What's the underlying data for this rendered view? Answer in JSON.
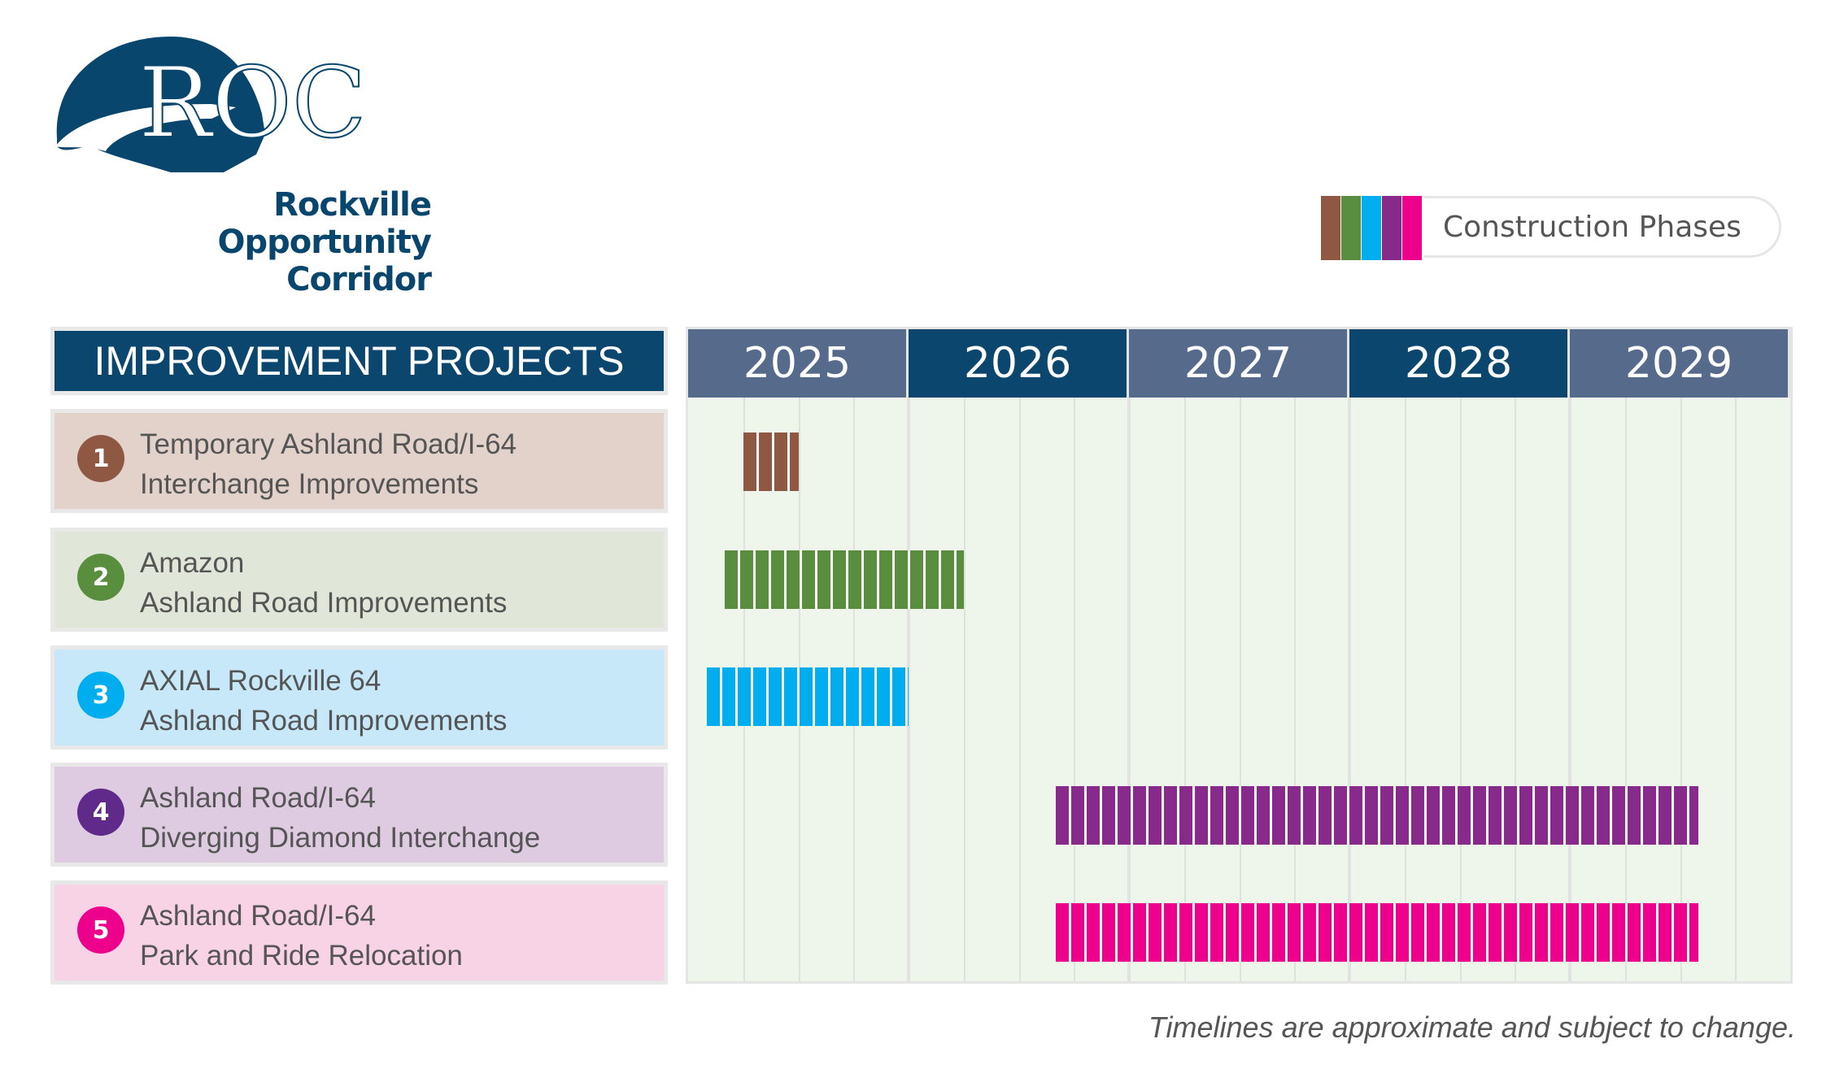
{
  "logo": {
    "mark": "ROC",
    "line1": "Rockville",
    "line2": "Opportunity",
    "line3": "Corridor",
    "color": "#08466e"
  },
  "legend": {
    "label": "Construction Phases",
    "colors": [
      "#8e5843",
      "#5a8e3f",
      "#00aeef",
      "#882a8c",
      "#ec008c"
    ]
  },
  "footnote": "Timelines are approximate and subject to change.",
  "chart_data": {
    "type": "gantt",
    "title": "IMPROVEMENT PROJECTS",
    "years": [
      "2025",
      "2026",
      "2027",
      "2028",
      "2029"
    ],
    "xlim": [
      "2025-01",
      "2029-12"
    ],
    "grid": "quarterly",
    "projects": [
      {
        "number": "1",
        "line1": "Temporary Ashland Road/I-64",
        "line2": "Interchange Improvements",
        "start": "2025-04",
        "end": "2025-06",
        "color": "#8e5843",
        "bg": "#e3d2c9"
      },
      {
        "number": "2",
        "line1": "Amazon",
        "line2": "Ashland Road Improvements",
        "start": "2025-03",
        "end": "2026-03",
        "color": "#5a8e3f",
        "bg": "#e0e6d8"
      },
      {
        "number": "3",
        "line1": "AXIAL Rockville 64",
        "line2": "Ashland Road Improvements",
        "start": "2025-02",
        "end": "2025-12",
        "color": "#00aeef",
        "bg": "#c6e8f8"
      },
      {
        "number": "4",
        "line1": "Ashland Road/I-64",
        "line2": "Diverging Diamond Interchange",
        "start": "2026-09",
        "end": "2029-07",
        "color": "#882a8c",
        "bg": "#dfcbe1",
        "badge": "#5f2a8a"
      },
      {
        "number": "5",
        "line1": "Ashland Road/I-64",
        "line2": "Park and Ride Relocation",
        "start": "2026-09",
        "end": "2029-07",
        "color": "#ec008c",
        "bg": "#f8d3e5"
      }
    ]
  }
}
